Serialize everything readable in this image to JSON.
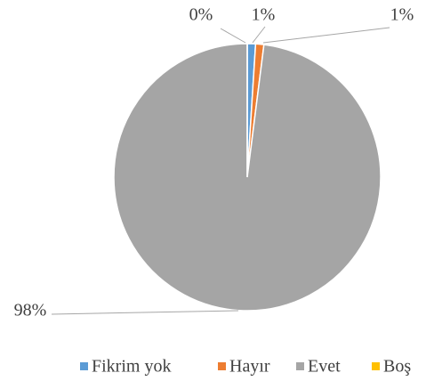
{
  "chart_data": {
    "type": "pie",
    "categories": [
      "Fikrim yok",
      "Hayır",
      "Evet",
      "Boş"
    ],
    "values": [
      1,
      1,
      98,
      0
    ],
    "value_labels": [
      "1%",
      "1%",
      "98%",
      "0%"
    ],
    "colors": [
      "#5b9bd5",
      "#ed7d31",
      "#a5a5a5",
      "#ffc000"
    ],
    "legend": "bottom"
  }
}
